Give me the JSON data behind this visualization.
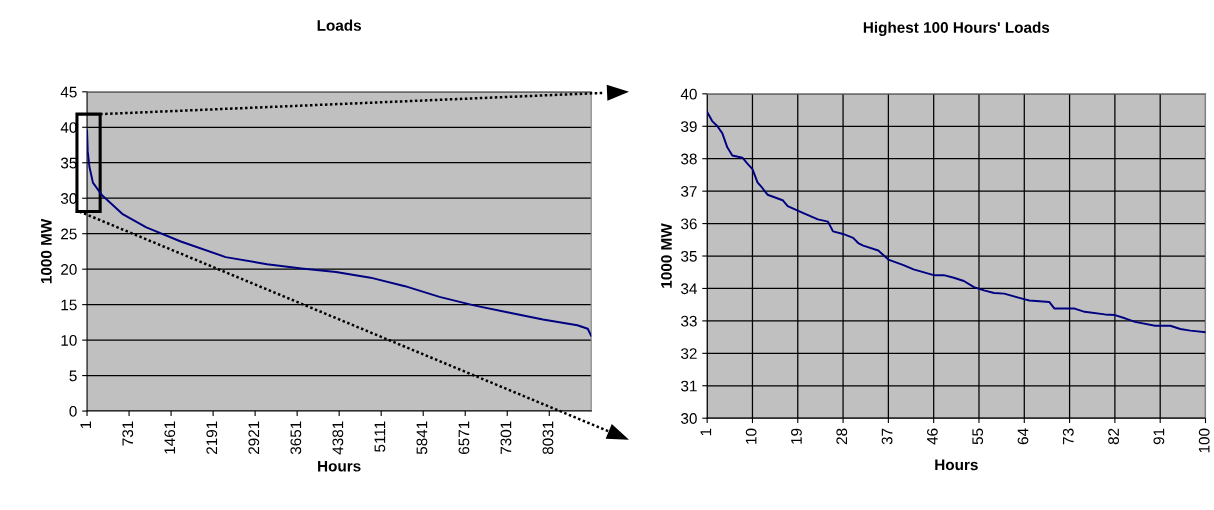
{
  "chart_data": [
    {
      "type": "line",
      "title": "Loads",
      "xlabel": "Hours",
      "ylabel": "1000 MW",
      "series": [
        {
          "color": "#000080",
          "x": [
            1,
            13,
            43,
            103,
            253,
            612,
            1031,
            1630,
            2409,
            3128,
            3727,
            4327,
            4926,
            5525,
            6124,
            6723,
            7322,
            7921,
            8520,
            8700,
            8760
          ],
          "values": [
            39.5,
            36.6,
            34.4,
            32.2,
            30.5,
            27.8,
            25.9,
            23.9,
            21.7,
            20.7,
            20.1,
            19.6,
            18.8,
            17.6,
            16.1,
            14.9,
            13.9,
            12.9,
            12.1,
            11.6,
            10.6
          ]
        }
      ],
      "xlim": [
        1,
        8760
      ],
      "xticks": [
        1,
        731,
        1461,
        2191,
        2921,
        3651,
        4381,
        5111,
        5841,
        6571,
        7301,
        8031
      ],
      "ylim": [
        0,
        45
      ],
      "yticks": [
        0,
        5,
        10,
        15,
        20,
        25,
        30,
        35,
        40,
        45
      ],
      "grid": "y",
      "legend": false,
      "marker": "none",
      "line_style": "solid"
    },
    {
      "type": "line",
      "title": "Highest 100 Hours' Loads",
      "xlabel": "Hours",
      "ylabel": "1000 MW",
      "series": [
        {
          "color": "#000080",
          "x": [
            1,
            2,
            3,
            4,
            5,
            6,
            8,
            9,
            10,
            11,
            12,
            13,
            16,
            17,
            20,
            23,
            25,
            26,
            28,
            30,
            31,
            32,
            35,
            37,
            40,
            42,
            46,
            48,
            50,
            52,
            54,
            56,
            58,
            60,
            63,
            65,
            69,
            70,
            74,
            76,
            80,
            82,
            84,
            86,
            90,
            93,
            95,
            97,
            100
          ],
          "values": [
            39.44,
            39.16,
            39.01,
            38.79,
            38.35,
            38.1,
            38.03,
            37.85,
            37.68,
            37.27,
            37.09,
            36.89,
            36.72,
            36.54,
            36.33,
            36.13,
            36.06,
            35.76,
            35.68,
            35.56,
            35.4,
            35.32,
            35.17,
            34.89,
            34.72,
            34.59,
            34.41,
            34.41,
            34.33,
            34.23,
            34.04,
            33.94,
            33.86,
            33.84,
            33.71,
            33.63,
            33.58,
            33.38,
            33.38,
            33.28,
            33.2,
            33.18,
            33.08,
            32.97,
            32.85,
            32.85,
            32.75,
            32.7,
            32.65
          ]
        }
      ],
      "xlim": [
        1,
        100
      ],
      "xticks": [
        1,
        10,
        19,
        28,
        37,
        46,
        55,
        64,
        73,
        82,
        91,
        100
      ],
      "ylim": [
        30,
        40
      ],
      "yticks": [
        30,
        31,
        32,
        33,
        34,
        35,
        36,
        37,
        38,
        39,
        40
      ],
      "grid": true,
      "legend": false,
      "marker": "none",
      "line_style": "solid"
    }
  ]
}
